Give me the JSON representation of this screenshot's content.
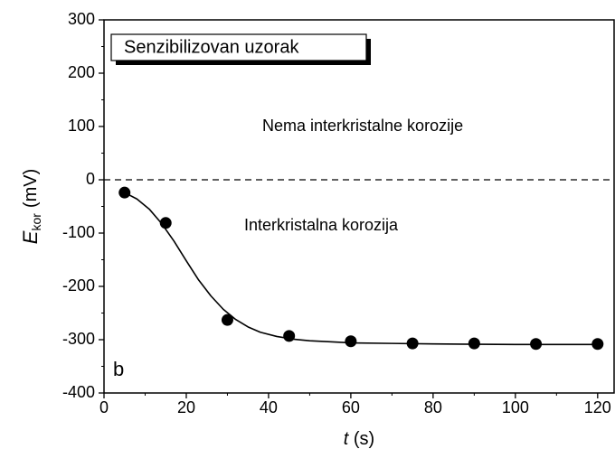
{
  "chart_data": {
    "type": "scatter",
    "xlabel": {
      "symbol": "t",
      "unit": "(s)"
    },
    "ylabel": {
      "symbol": "E",
      "subscript": "kor",
      "unit": "(mV)"
    },
    "annotations": [
      "Senzibilizovan uzorak",
      "Nema interkristalne korozije",
      "Interkristalna korozija",
      "b"
    ],
    "series": [
      {
        "x": [
          5,
          15,
          30,
          45,
          60,
          75,
          90,
          105,
          120
        ],
        "values": [
          -24,
          -81,
          -263,
          -293,
          -303,
          -307,
          -307,
          -308,
          -308
        ],
        "color": "#000000"
      },
      {
        "type": "line",
        "x": [
          5,
          8,
          11,
          14,
          17,
          20,
          23,
          26,
          29,
          32,
          35,
          38,
          42,
          46,
          50,
          55,
          60,
          70,
          80,
          100,
          120
        ],
        "values": [
          -24,
          -36,
          -55,
          -82,
          -115,
          -152,
          -188,
          -218,
          -243,
          -262,
          -276,
          -286,
          -294,
          -299,
          -302,
          -304,
          -306,
          -307,
          -308,
          -309,
          -309
        ],
        "color": "#000000"
      }
    ],
    "hline": 0,
    "xlim": [
      0,
      124
    ],
    "ylim": [
      -400,
      300
    ],
    "xticks": [
      0,
      20,
      40,
      60,
      80,
      100,
      120
    ],
    "yticks": [
      -400,
      -300,
      -200,
      -100,
      0,
      100,
      200,
      300
    ]
  }
}
